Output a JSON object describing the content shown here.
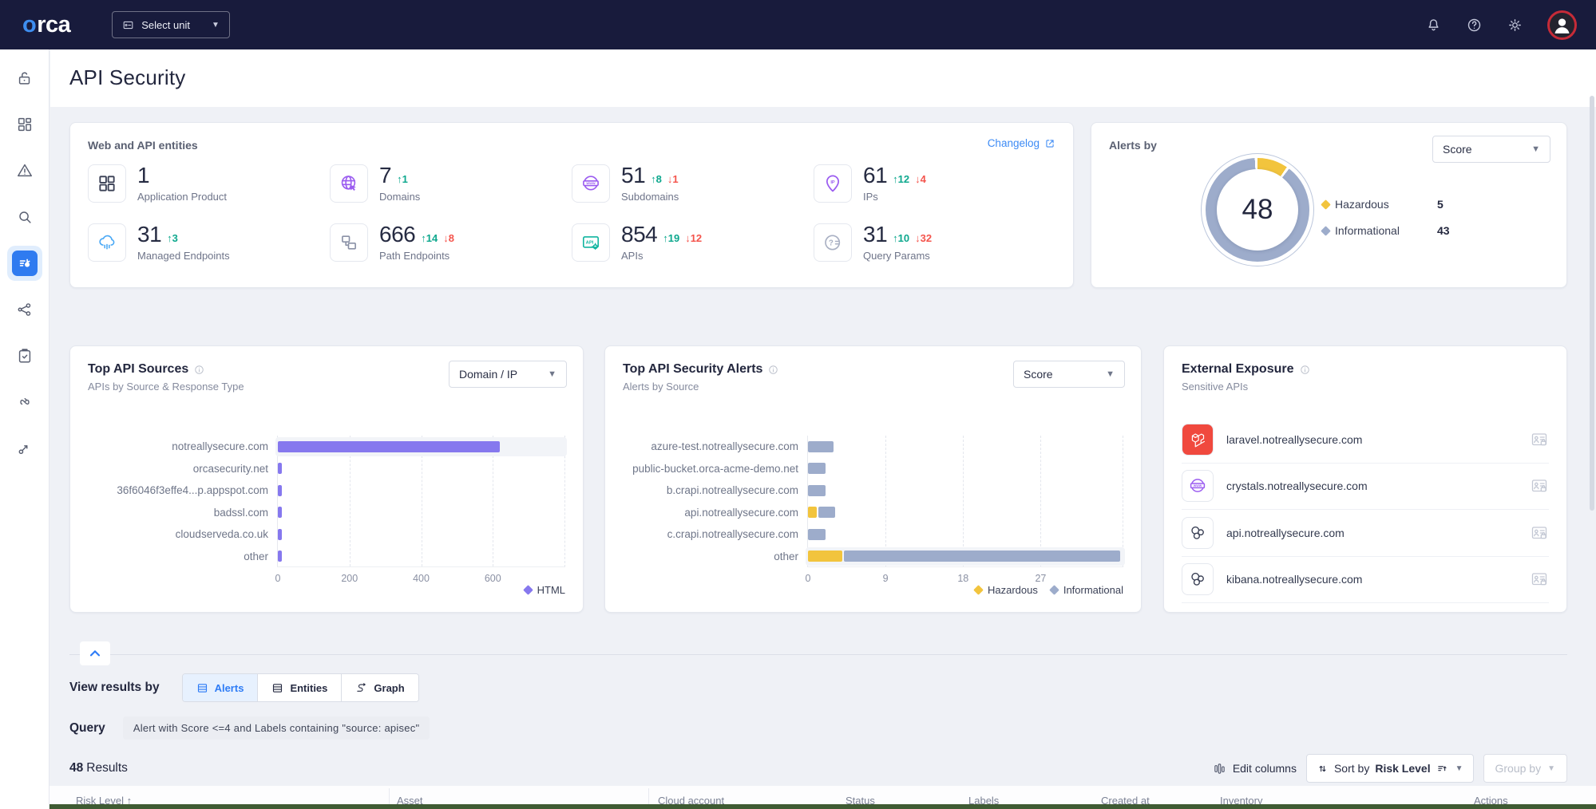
{
  "topbar": {
    "logo": "orca",
    "unit_selector": "Select unit",
    "icons": [
      "notifications",
      "help",
      "settings"
    ]
  },
  "page": {
    "title": "API Security"
  },
  "sidebar": {
    "items": [
      {
        "id": "unlock"
      },
      {
        "id": "dashboard"
      },
      {
        "id": "alerts"
      },
      {
        "id": "search"
      },
      {
        "id": "api-security",
        "active": true
      },
      {
        "id": "attack-path"
      },
      {
        "id": "compliance"
      },
      {
        "id": "shift-left"
      },
      {
        "id": "trace"
      }
    ]
  },
  "entities_card": {
    "title": "Web and API entities",
    "changelog_label": "Changelog",
    "stats": [
      {
        "icon": "app-product",
        "value": "1",
        "label": "Application Product"
      },
      {
        "icon": "domains",
        "value": "7",
        "up": "1",
        "label": "Domains"
      },
      {
        "icon": "subdomains",
        "value": "51",
        "up": "8",
        "down": "1",
        "label": "Subdomains"
      },
      {
        "icon": "ips",
        "value": "61",
        "up": "12",
        "down": "4",
        "label": "IPs"
      },
      {
        "icon": "managed-endpoints",
        "value": "31",
        "up": "3",
        "label": "Managed Endpoints"
      },
      {
        "icon": "path-endpoints",
        "value": "666",
        "up": "14",
        "down": "8",
        "label": "Path Endpoints"
      },
      {
        "icon": "apis",
        "value": "854",
        "up": "19",
        "down": "12",
        "label": "APIs"
      },
      {
        "icon": "query-params",
        "value": "31",
        "up": "10",
        "down": "32",
        "label": "Query Params"
      }
    ]
  },
  "alerts_by_card": {
    "title": "Alerts by",
    "dropdown_value": "Score"
  },
  "sources_card": {
    "title": "Top API Sources",
    "subtitle": "APIs by Source & Response Type",
    "dropdown_value": "Domain / IP"
  },
  "alerts_chart_card": {
    "title": "Top API Security Alerts",
    "subtitle": "Alerts by Source",
    "dropdown_value": "Score"
  },
  "exposure_card": {
    "title": "External Exposure",
    "subtitle": "Sensitive APIs",
    "items": [
      {
        "icon": "laravel",
        "label": "laravel.notreallysecure.com"
      },
      {
        "icon": "www-badge",
        "label": "crystals.notreallysecure.com"
      },
      {
        "icon": "cluster",
        "label": "api.notreallysecure.com"
      },
      {
        "icon": "cluster",
        "label": "kibana.notreallysecure.com"
      }
    ]
  },
  "chart_data": [
    {
      "type": "donut",
      "title": "Alerts by Score",
      "total": 48,
      "center_label": "48",
      "segments": [
        {
          "label": "Hazardous",
          "value": 5,
          "color": "#F2C43D"
        },
        {
          "label": "Informational",
          "value": 43,
          "color": "#9DACCB"
        }
      ],
      "legend_position": "right"
    },
    {
      "type": "bar",
      "orientation": "horizontal",
      "title": "Top API Sources",
      "subtitle": "APIs by Source & Response Type",
      "categories": [
        "notreallysecure.com",
        "orcasecurity.net",
        "36f6046f3effe4...p.appspot.com",
        "badssl.com",
        "cloudserveda.co.uk",
        "other"
      ],
      "series": [
        {
          "name": "HTML",
          "color": "#8678EE",
          "values": [
            620,
            12,
            12,
            12,
            12,
            12
          ]
        }
      ],
      "xticks": [
        0,
        200,
        400,
        600
      ],
      "xlim": [
        0,
        800
      ],
      "grid": "dashed-vertical",
      "legend": [
        "HTML"
      ],
      "legend_position": "bottom-right",
      "highlight_row": 0
    },
    {
      "type": "bar",
      "orientation": "horizontal",
      "stacked": true,
      "title": "Top API Security Alerts",
      "subtitle": "Alerts by Source",
      "categories": [
        "azure-test.notreallysecure.com",
        "public-bucket.orca-acme-demo.net",
        "b.crapi.notreallysecure.com",
        "api.notreallysecure.com",
        "c.crapi.notreallysecure.com",
        "other"
      ],
      "series": [
        {
          "name": "Hazardous",
          "color": "#F2C43D",
          "values": [
            0,
            0,
            0,
            1,
            0,
            4
          ]
        },
        {
          "name": "Informational",
          "color": "#9DACCB",
          "values": [
            3,
            2,
            2,
            2,
            2,
            32
          ]
        }
      ],
      "xticks": [
        0,
        9,
        18,
        27
      ],
      "xlim": [
        0,
        36.5
      ],
      "grid": "dashed-vertical",
      "legend": [
        "Hazardous",
        "Informational"
      ],
      "legend_position": "bottom-right",
      "highlight_row": 5
    }
  ],
  "results": {
    "view_by_label": "View results by",
    "tabs": [
      {
        "label": "Alerts",
        "icon": "tab-list",
        "active": true
      },
      {
        "label": "Entities",
        "icon": "tab-list",
        "active": false
      },
      {
        "label": "Graph",
        "icon": "tab-graph",
        "active": false
      }
    ],
    "query_label": "Query",
    "query_value": "Alert with Score <=4 and Labels containing \"source: apisec\"",
    "count": "48",
    "count_suffix": "Results",
    "edit_columns_label": "Edit columns",
    "sort_by_prefix": "Sort by",
    "sort_by_value": "Risk Level",
    "group_by_label": "Group by",
    "table_columns": [
      "Risk Level",
      "Asset",
      "Cloud account",
      "Status",
      "Labels",
      "Created at",
      "Inventory",
      "Actions"
    ]
  },
  "colors": {
    "accent_blue": "#2E7CF6",
    "link_blue": "#3D8BF5",
    "up_green": "#0EA88E",
    "down_red": "#F4544C",
    "purple_bar": "#8678EE",
    "hazardous_yellow": "#F2C43D",
    "informational_blue": "#9DACCB",
    "topbar_bg": "#181B3C",
    "bottom_line_green": "#3F5B33"
  }
}
